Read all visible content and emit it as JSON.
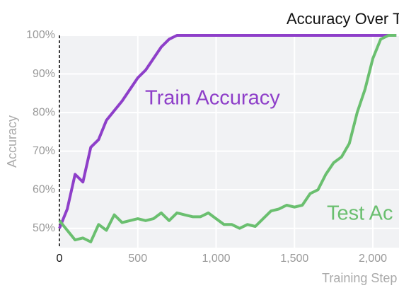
{
  "chart_data": {
    "type": "line",
    "title": "Accuracy Over T",
    "x_label": "Training Step",
    "y_label": "Accuracy",
    "x": [
      0,
      50,
      100,
      150,
      200,
      250,
      300,
      350,
      400,
      450,
      500,
      550,
      600,
      650,
      700,
      750,
      800,
      850,
      900,
      950,
      1000,
      1050,
      1100,
      1150,
      1200,
      1250,
      1300,
      1350,
      1400,
      1450,
      1500,
      1550,
      1600,
      1650,
      1700,
      1750,
      1800,
      1850,
      1900,
      1950,
      2000,
      2050,
      2100,
      2150
    ],
    "series": [
      {
        "name": "Train Accuracy",
        "color": "#8e3fc9",
        "values": [
          50,
          55,
          64,
          62,
          71,
          73,
          78,
          80.5,
          83,
          86,
          89,
          91,
          94,
          97,
          99,
          100,
          100,
          100,
          100,
          100,
          100,
          100,
          100,
          100,
          100,
          100,
          100,
          100,
          100,
          100,
          100,
          100,
          100,
          100,
          100,
          100,
          100,
          100,
          100,
          100,
          100,
          100,
          100,
          100
        ]
      },
      {
        "name": "Test Ac",
        "color": "#6abf6f",
        "values": [
          52,
          49.5,
          47,
          47.5,
          46.5,
          51,
          49.5,
          53.5,
          51.5,
          52,
          52.5,
          52,
          52.5,
          54,
          52,
          54,
          53.5,
          53,
          53,
          54,
          52.5,
          51,
          51,
          50,
          51,
          50.5,
          52.5,
          54.5,
          55,
          56,
          55.5,
          56,
          59,
          60,
          64,
          67,
          68.5,
          72,
          80,
          86,
          94,
          99,
          100,
          100
        ]
      }
    ],
    "xlim": [
      0,
      2167
    ],
    "ylim": [
      45,
      100
    ],
    "xticks": [
      0,
      500,
      {
        "value": 1000,
        "label": "1,000"
      },
      {
        "value": 1500,
        "label": "1,500"
      },
      {
        "value": 2000,
        "label": "2,000"
      }
    ],
    "yticks": [
      {
        "value": 50,
        "label": "50%"
      },
      {
        "value": 60,
        "label": "60%"
      },
      {
        "value": 70,
        "label": "70%"
      },
      {
        "value": 80,
        "label": "80%"
      },
      {
        "value": 90,
        "label": "90%"
      },
      {
        "value": 100,
        "label": "100%"
      }
    ],
    "grid": true
  }
}
